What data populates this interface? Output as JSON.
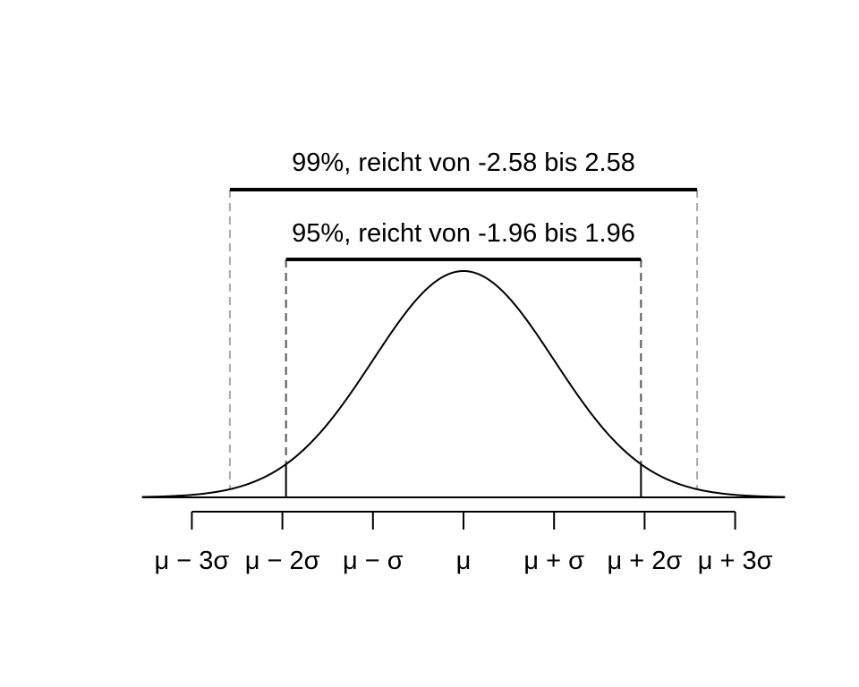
{
  "chart_data": {
    "type": "line",
    "title": "",
    "xlabel": "",
    "ylabel": "",
    "curve": "normal density",
    "xlim": [
      -3.55,
      3.55
    ],
    "ylim": [
      0,
      0.4
    ],
    "grid": false,
    "axis": {
      "ticks": [
        -3,
        -2,
        -1,
        0,
        1,
        2,
        3
      ],
      "tick_labels": [
        "μ − 3σ",
        "μ − 2σ",
        "μ − σ",
        "μ",
        "μ + σ",
        "μ + 2σ",
        "μ + 3σ"
      ]
    },
    "intervals": [
      {
        "label": "99%, reicht von -2.58 bis 2.58",
        "coverage": 0.99,
        "from": -2.58,
        "to": 2.58,
        "line_color": "#aaaaaa"
      },
      {
        "label": "95%, reicht von -1.96 bis 1.96",
        "coverage": 0.95,
        "from": -1.96,
        "to": 1.96,
        "line_color": "#555555"
      }
    ]
  }
}
